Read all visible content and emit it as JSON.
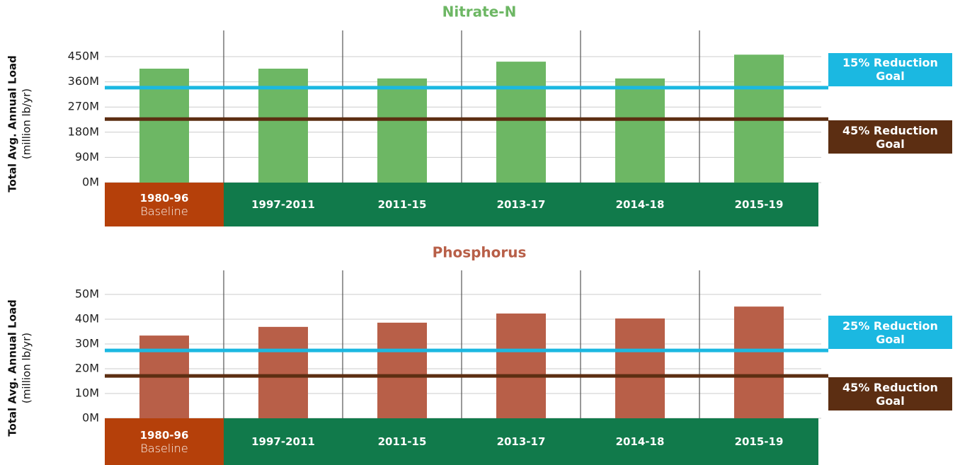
{
  "chart_data": [
    {
      "type": "bar",
      "title": "Nitrate-N",
      "title_color": "#6db764",
      "y_label": "Total Avg. Annual Load",
      "y_label_unit": "(million lb/yr)",
      "categories": [
        "1980-96",
        "1997-2011",
        "2011-15",
        "2013-17",
        "2014-18",
        "2015-19"
      ],
      "category_notes": [
        "Baseline",
        null,
        null,
        null,
        null,
        null
      ],
      "category_colors": [
        "#b5400a",
        "#117a4b",
        "#117a4b",
        "#117a4b",
        "#117a4b",
        "#117a4b"
      ],
      "values": [
        407,
        407,
        372,
        432,
        372,
        457
      ],
      "color": "#6db764",
      "ylim": [
        0,
        450
      ],
      "yticks": [
        {
          "value": 0,
          "label": "0M"
        },
        {
          "value": 90,
          "label": "90M"
        },
        {
          "value": 180,
          "label": "180M"
        },
        {
          "value": 270,
          "label": "270M"
        },
        {
          "value": 360,
          "label": "360M"
        },
        {
          "value": 450,
          "label": "450M"
        }
      ],
      "grid": true,
      "reference_lines": [
        {
          "label": "15% Reduction Goal",
          "value": 339,
          "color": "#1bb8e1"
        },
        {
          "label": "45% Reduction Goal",
          "value": 227,
          "color": "#5c2e12"
        }
      ]
    },
    {
      "type": "bar",
      "title": "Phosphorus",
      "title_color": "#b85f48",
      "y_label": "Total Avg. Annual Load",
      "y_label_unit": "(million lb/yr)",
      "categories": [
        "1980-96",
        "1997-2011",
        "2011-15",
        "2013-17",
        "2014-18",
        "2015-19"
      ],
      "category_notes": [
        "Baseline",
        null,
        null,
        null,
        null,
        null
      ],
      "category_colors": [
        "#b5400a",
        "#117a4b",
        "#117a4b",
        "#117a4b",
        "#117a4b",
        "#117a4b"
      ],
      "values": [
        33.4,
        36.9,
        38.6,
        42.3,
        40.3,
        45.1
      ],
      "color": "#b85f48",
      "ylim": [
        0,
        50
      ],
      "yticks": [
        {
          "value": 0,
          "label": "0M"
        },
        {
          "value": 10,
          "label": "10M"
        },
        {
          "value": 20,
          "label": "20M"
        },
        {
          "value": 30,
          "label": "30M"
        },
        {
          "value": 40,
          "label": "40M"
        },
        {
          "value": 50,
          "label": "50M"
        }
      ],
      "grid": true,
      "reference_lines": [
        {
          "label": "25% Reduction Goal",
          "value": 27.4,
          "color": "#1bb8e1"
        },
        {
          "label": "45% Reduction Goal",
          "value": 17.1,
          "color": "#5c2e12"
        }
      ]
    }
  ]
}
